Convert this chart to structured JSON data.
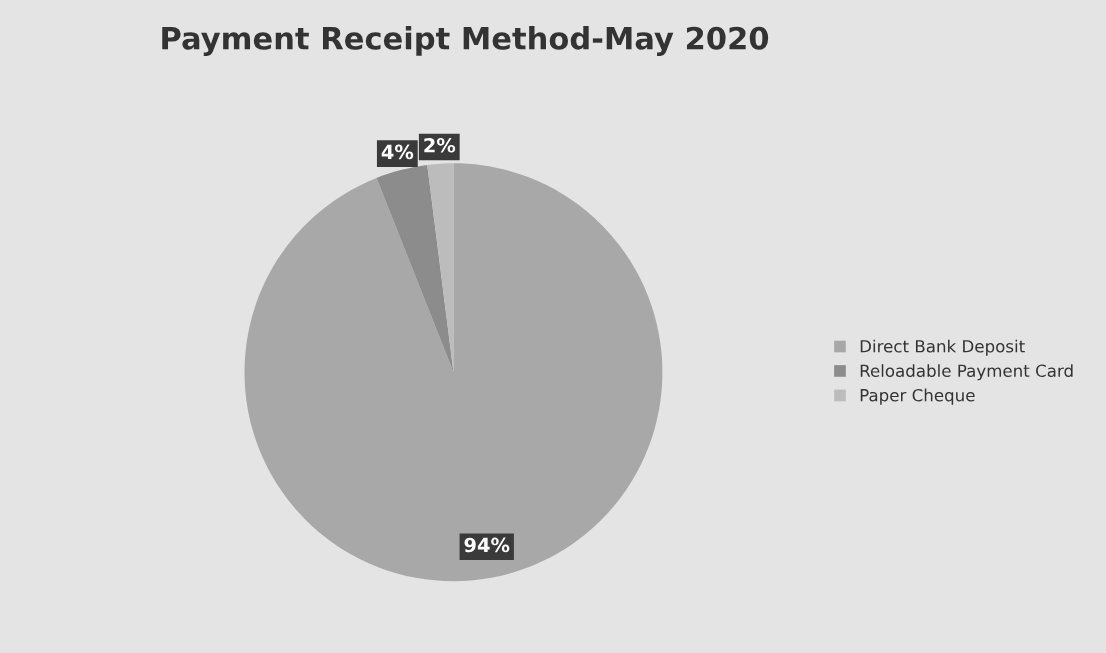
{
  "chart_data": {
    "type": "pie",
    "title": "Payment Receipt Method-May 2020",
    "categories": [
      "Direct Bank Deposit",
      "Reloadable Payment Card",
      "Paper Cheque"
    ],
    "values": [
      94,
      4,
      2
    ],
    "colors": [
      "#a8a8a8",
      "#8c8c8c",
      "#bcbcbc"
    ],
    "value_labels": [
      "94%",
      "4%",
      "2%"
    ],
    "legend": "right"
  }
}
